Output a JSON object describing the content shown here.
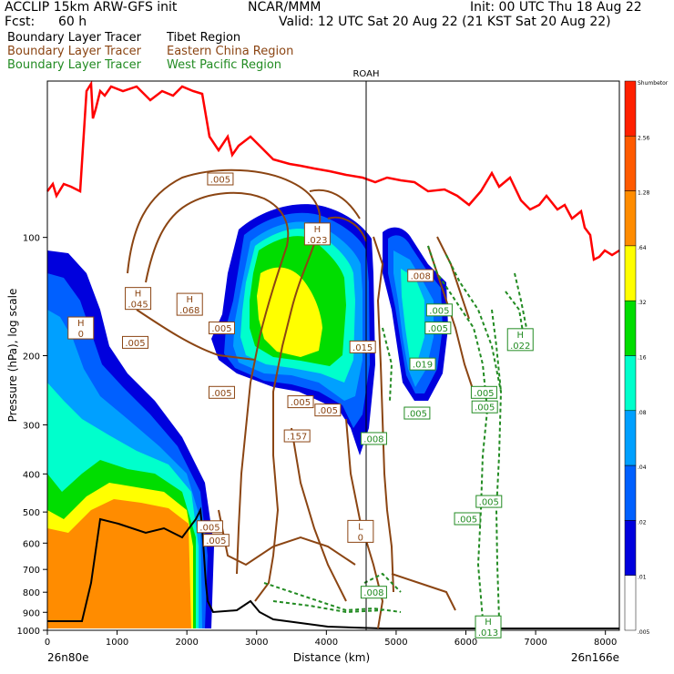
{
  "header": {
    "model": "ACCLIP 15km ARW-GFS init",
    "org": "NCAR/MMM",
    "init": "Init: 00 UTC Thu 18 Aug 22",
    "fcst_label": "Fcst:",
    "fcst_value": "60 h",
    "valid": "Valid: 12 UTC Sat 20 Aug 22 (21 KST Sat 20 Aug 22)",
    "legend": [
      {
        "prefix": "Boundary Layer Tracer",
        "region": "Tibet Region",
        "color": "#000000"
      },
      {
        "prefix": "Boundary Layer Tracer",
        "region": "Eastern China Region",
        "color": "#8B4513"
      },
      {
        "prefix": "Boundary Layer Tracer",
        "region": "West Pacific Region",
        "color": "#228B22"
      }
    ]
  },
  "colors": {
    "tropopause": "#ff0000",
    "terrain": "#000000",
    "east_china": "#8B4513",
    "west_pacific": "#228B22",
    "marker": "#000000"
  },
  "chart_data": {
    "type": "heatmap",
    "title": "",
    "xlabel": "Distance (km)",
    "ylabel": "Pressure (hPa), log scale",
    "x_ticks": [
      0,
      1000,
      2000,
      3000,
      4000,
      5000,
      6000,
      7000,
      8000
    ],
    "y_ticks": [
      100,
      200,
      300,
      400,
      500,
      600,
      700,
      800,
      900,
      1000
    ],
    "xlim": [
      0,
      8200
    ],
    "ylim": [
      1000,
      40
    ],
    "y_scale": "log",
    "left_endpoint": "26n80e",
    "right_endpoint": "26n166e",
    "vertical_marker": {
      "label": "ROAH",
      "x": 4550
    },
    "colorbar": {
      "labels": [
        "Shumbetor",
        "2.56",
        "1.28",
        ".64",
        ".32",
        ".16",
        ".08",
        ".04",
        ".02",
        ".01",
        ".005"
      ],
      "colors": [
        "#ff2000",
        "#ff5a00",
        "#ff8c00",
        "#ffff00",
        "#00dd00",
        "#00ffcc",
        "#00a0ff",
        "#0060ff",
        "#0000dd",
        "#ffffff"
      ]
    },
    "labels": [
      {
        "text": ".005",
        "x": 2480,
        "p": 71
      },
      {
        "text": "H .023",
        "x": 3870,
        "p": 98
      },
      {
        "text": "H .045",
        "x": 1300,
        "p": 143
      },
      {
        "text": "H .068",
        "x": 2040,
        "p": 148
      },
      {
        "text": ".005",
        "x": 2500,
        "p": 170
      },
      {
        "text": ".005",
        "x": 1260,
        "p": 185
      },
      {
        "text": ".005",
        "x": 2500,
        "p": 248
      },
      {
        "text": ".005",
        "x": 3630,
        "p": 262
      },
      {
        "text": ".005",
        "x": 4020,
        "p": 275
      },
      {
        "text": ".157",
        "x": 3580,
        "p": 320
      },
      {
        "text": ".008",
        "x": 4680,
        "p": 325
      },
      {
        "text": ".008",
        "x": 5350,
        "p": 125
      },
      {
        "text": ".005",
        "x": 5620,
        "p": 153
      },
      {
        "text": ".005",
        "x": 5600,
        "p": 170
      },
      {
        "text": "H .022",
        "x": 6780,
        "p": 182
      },
      {
        "text": ".005",
        "x": 5300,
        "p": 280
      },
      {
        "text": ".005",
        "x": 6260,
        "p": 248
      },
      {
        "text": ".005",
        "x": 6270,
        "p": 270
      },
      {
        "text": ".005",
        "x": 6330,
        "p": 470
      },
      {
        "text": ".005",
        "x": 6020,
        "p": 520
      },
      {
        "text": ".005",
        "x": 2330,
        "p": 545
      },
      {
        "text": ".005",
        "x": 2420,
        "p": 590
      },
      {
        "text": "L 0",
        "x": 4490,
        "p": 560
      },
      {
        "text": ".008",
        "x": 4680,
        "p": 800
      },
      {
        "text": "H .013",
        "x": 6320,
        "p": 980
      },
      {
        "text": "H 0",
        "x": 480,
        "p": 170
      },
      {
        "text": ".015",
        "x": 4520,
        "p": 190
      },
      {
        "text": ".019",
        "x": 5380,
        "p": 210
      }
    ]
  }
}
